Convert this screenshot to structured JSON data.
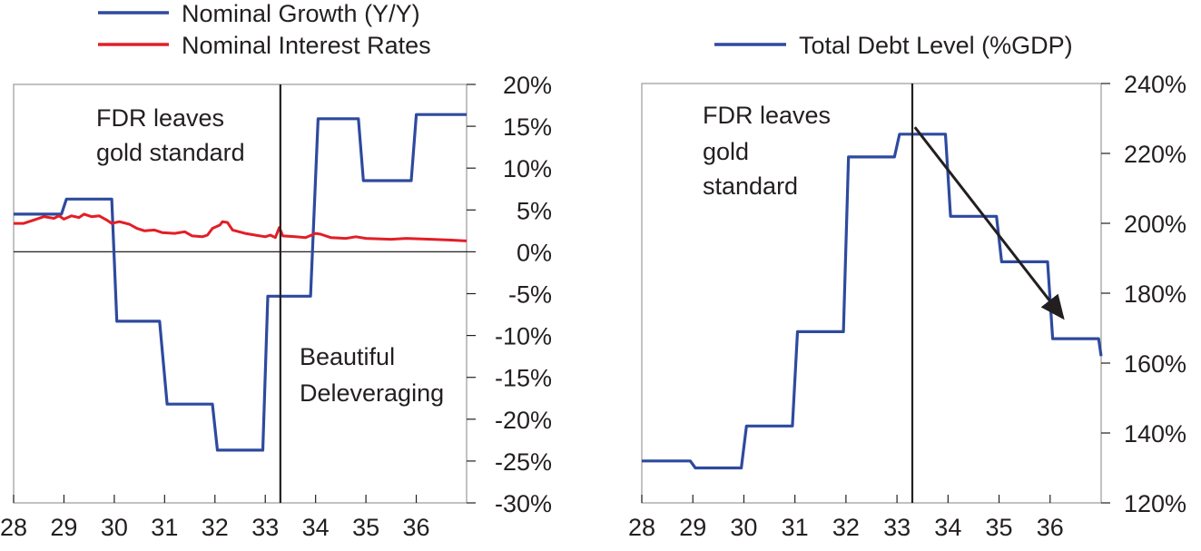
{
  "chart_data": [
    {
      "type": "line",
      "step": true,
      "x_ticks": [
        "28",
        "29",
        "30",
        "31",
        "32",
        "33",
        "34",
        "35",
        "36"
      ],
      "xlim": [
        1928,
        1937
      ],
      "ylim": [
        -30,
        20
      ],
      "y_ticks": [
        "20%",
        "15%",
        "10%",
        "5%",
        "0%",
        "-5%",
        "-10%",
        "-15%",
        "-20%",
        "-25%",
        "-30%"
      ],
      "y_axis_side": "right",
      "legend_position": "top",
      "grid": false,
      "series": [
        {
          "name": "Nominal Growth (Y/Y)",
          "color": "#2e4a9e",
          "points": [
            [
              1928.0,
              4.5
            ],
            [
              1928.95,
              4.5
            ],
            [
              1929.05,
              6.3
            ],
            [
              1929.95,
              6.3
            ],
            [
              1930.05,
              -8.3
            ],
            [
              1930.9,
              -8.3
            ],
            [
              1931.05,
              -18.2
            ],
            [
              1931.95,
              -18.2
            ],
            [
              1932.05,
              -23.7
            ],
            [
              1932.95,
              -23.7
            ],
            [
              1933.05,
              -5.3
            ],
            [
              1933.9,
              -5.3
            ],
            [
              1934.05,
              15.9
            ],
            [
              1934.85,
              15.9
            ],
            [
              1934.95,
              8.5
            ],
            [
              1935.9,
              8.5
            ],
            [
              1936.0,
              16.4
            ],
            [
              1937.0,
              16.4
            ]
          ]
        },
        {
          "name": "Nominal Interest Rates",
          "color": "#e31e26",
          "points": [
            [
              1928.0,
              3.4
            ],
            [
              1928.2,
              3.4
            ],
            [
              1928.4,
              3.8
            ],
            [
              1928.6,
              4.2
            ],
            [
              1928.8,
              4.0
            ],
            [
              1928.9,
              4.3
            ],
            [
              1929.0,
              3.9
            ],
            [
              1929.15,
              4.3
            ],
            [
              1929.3,
              4.1
            ],
            [
              1929.4,
              4.5
            ],
            [
              1929.55,
              4.2
            ],
            [
              1929.7,
              4.3
            ],
            [
              1929.85,
              3.8
            ],
            [
              1929.95,
              3.4
            ],
            [
              1930.1,
              3.6
            ],
            [
              1930.3,
              3.3
            ],
            [
              1930.45,
              2.8
            ],
            [
              1930.6,
              2.5
            ],
            [
              1930.8,
              2.6
            ],
            [
              1930.95,
              2.3
            ],
            [
              1931.2,
              2.2
            ],
            [
              1931.4,
              2.4
            ],
            [
              1931.55,
              1.9
            ],
            [
              1931.75,
              1.8
            ],
            [
              1931.85,
              2.0
            ],
            [
              1931.95,
              2.8
            ],
            [
              1932.1,
              3.2
            ],
            [
              1932.15,
              3.6
            ],
            [
              1932.25,
              3.5
            ],
            [
              1932.35,
              2.6
            ],
            [
              1932.6,
              2.2
            ],
            [
              1932.8,
              2.0
            ],
            [
              1933.0,
              1.8
            ],
            [
              1933.1,
              2.0
            ],
            [
              1933.2,
              1.7
            ],
            [
              1933.28,
              2.9
            ],
            [
              1933.35,
              1.9
            ],
            [
              1933.6,
              1.8
            ],
            [
              1933.8,
              1.7
            ],
            [
              1934.0,
              2.2
            ],
            [
              1934.1,
              2.1
            ],
            [
              1934.3,
              1.7
            ],
            [
              1934.6,
              1.6
            ],
            [
              1934.8,
              1.8
            ],
            [
              1935.0,
              1.6
            ],
            [
              1935.5,
              1.5
            ],
            [
              1935.8,
              1.6
            ],
            [
              1936.3,
              1.5
            ],
            [
              1936.7,
              1.4
            ],
            [
              1937.0,
              1.3
            ]
          ]
        }
      ],
      "vline_x": 1933.3,
      "annotations": [
        {
          "lines": [
            "FDR leaves",
            "gold standard"
          ]
        },
        {
          "lines": [
            "Beautiful",
            "Deleveraging"
          ]
        }
      ]
    },
    {
      "type": "line",
      "step": true,
      "x_ticks": [
        "28",
        "29",
        "30",
        "31",
        "32",
        "33",
        "34",
        "35",
        "36"
      ],
      "xlim": [
        1928,
        1937
      ],
      "ylim": [
        120,
        240
      ],
      "y_ticks": [
        "240%",
        "220%",
        "200%",
        "180%",
        "160%",
        "140%",
        "120%"
      ],
      "y_axis_side": "right",
      "legend_position": "top",
      "grid": false,
      "series": [
        {
          "name": "Total Debt Level (%GDP)",
          "color": "#2e4a9e",
          "points": [
            [
              1928.0,
              132
            ],
            [
              1928.95,
              132
            ],
            [
              1929.05,
              130
            ],
            [
              1929.95,
              130
            ],
            [
              1930.05,
              142
            ],
            [
              1930.95,
              142
            ],
            [
              1931.05,
              169
            ],
            [
              1931.95,
              169
            ],
            [
              1932.05,
              219
            ],
            [
              1932.95,
              219
            ],
            [
              1933.05,
              225.5
            ],
            [
              1933.95,
              225.5
            ],
            [
              1934.05,
              202
            ],
            [
              1934.95,
              202
            ],
            [
              1935.05,
              189
            ],
            [
              1935.95,
              189
            ],
            [
              1936.05,
              167
            ],
            [
              1936.95,
              167
            ],
            [
              1937.0,
              162
            ]
          ]
        }
      ],
      "vline_x": 1933.3,
      "arrow": {
        "from": [
          1933.35,
          227.5
        ],
        "to": [
          1936.25,
          173
        ]
      },
      "annotations": [
        {
          "lines": [
            "FDR leaves",
            "gold",
            "standard"
          ]
        }
      ]
    }
  ]
}
